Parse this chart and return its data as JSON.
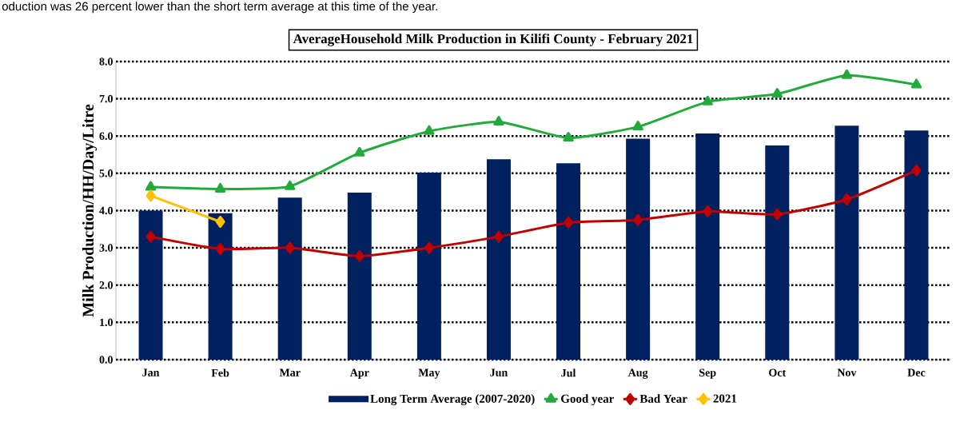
{
  "chart_data": {
    "type": "bar",
    "title": "AverageHousehold Milk Production  in Kilifi  County - February 2021",
    "ylabel": "Milk Production/HH/Day/Litre",
    "annotations": [
      "oduction was 26 percent lower than the short term average at this time of the year."
    ],
    "categories": [
      "Jan",
      "Feb",
      "Mar",
      "Apr",
      "May",
      "Jun",
      "Jul",
      "Aug",
      "Sep",
      "Oct",
      "Nov",
      "Dec"
    ],
    "series": [
      {
        "name": "Long Term Average (2007-2020)",
        "color": "#002060",
        "values": [
          4.0,
          3.93,
          4.35,
          4.48,
          5.02,
          5.38,
          5.27,
          5.93,
          6.07,
          5.75,
          6.28,
          6.15
        ]
      },
      {
        "name": "Good year",
        "type": "line",
        "color": "#22aa3a",
        "marker": "triangle",
        "values": [
          4.63,
          4.58,
          4.65,
          5.55,
          6.13,
          6.38,
          5.95,
          6.25,
          6.92,
          7.13,
          7.63,
          7.38
        ]
      },
      {
        "name": "Bad Year",
        "type": "line",
        "color": "#c00000",
        "marker": "diamond",
        "values": [
          3.3,
          2.97,
          3.0,
          2.78,
          3.0,
          3.3,
          3.68,
          3.75,
          3.98,
          3.9,
          4.3,
          5.08
        ]
      },
      {
        "name": "2021",
        "type": "line",
        "color": "#ffc000",
        "marker": "diamond",
        "values": [
          4.4,
          3.7,
          null,
          null,
          null,
          null,
          null,
          null,
          null,
          null,
          null,
          null
        ]
      }
    ],
    "ylim": [
      0,
      8
    ],
    "yticks": [
      {
        "value": 0,
        "label": "0.0"
      },
      {
        "value": 1,
        "label": "1.0"
      },
      {
        "value": 2,
        "label": "2.0"
      },
      {
        "value": 3,
        "label": "3.0"
      },
      {
        "value": 4,
        "label": "4.0"
      },
      {
        "value": 5,
        "label": "5.0"
      },
      {
        "value": 6,
        "label": "6.0"
      },
      {
        "value": 7,
        "label": "7.0"
      },
      {
        "value": 8,
        "label": "8.0"
      }
    ],
    "grid": "y",
    "legend": "bottom"
  }
}
